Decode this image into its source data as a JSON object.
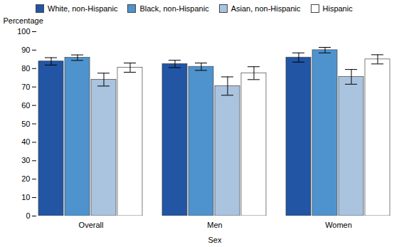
{
  "chart_data": {
    "type": "bar",
    "categories": [
      "Overall",
      "Men",
      "Women"
    ],
    "series": [
      {
        "name": "White, non-Hispanic",
        "color": "#2255a4",
        "values": [
          83.9,
          82.5,
          86.0
        ],
        "errors": [
          2.0,
          2.0,
          2.5
        ]
      },
      {
        "name": "Black, non-Hispanic",
        "color": "#4f93ce",
        "values": [
          85.9,
          81.0,
          90.0
        ],
        "errors": [
          1.5,
          2.0,
          1.5
        ]
      },
      {
        "name": "Asian, non-Hispanic",
        "color": "#aac4e0",
        "values": [
          74.0,
          70.5,
          75.5
        ],
        "errors": [
          3.5,
          5.0,
          4.0
        ]
      },
      {
        "name": "Hispanic",
        "color": "#ffffff",
        "values": [
          80.5,
          77.5,
          85.0
        ],
        "errors": [
          2.5,
          3.5,
          2.5
        ]
      }
    ],
    "xlabel": "Sex",
    "ylabel": "Percentage",
    "ylim": [
      0,
      100
    ],
    "yticks": [
      0,
      10,
      20,
      30,
      40,
      50,
      60,
      70,
      80,
      90,
      100
    ],
    "grid": false,
    "legend": "upper left"
  }
}
